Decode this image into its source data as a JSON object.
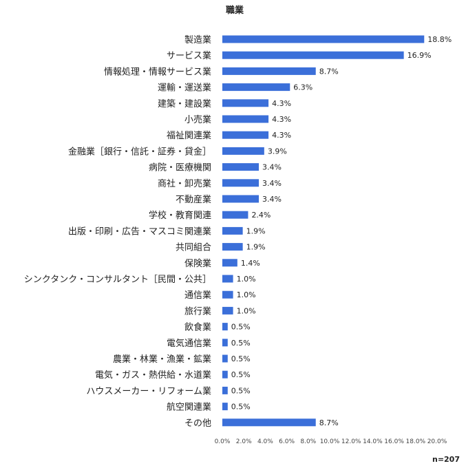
{
  "chart_data": {
    "type": "bar",
    "orientation": "horizontal",
    "title": "職業",
    "note": "n=207",
    "bar_color": "#3b6fd9",
    "xlim": [
      0,
      20
    ],
    "grid": false,
    "xticks": [
      0,
      2,
      4,
      6,
      8,
      10,
      12,
      14,
      16,
      18,
      20
    ],
    "xtick_labels": [
      "0.0%",
      "2.0%",
      "4.0%",
      "6.0%",
      "8.0%",
      "10.0%",
      "12.0%",
      "14.0%",
      "16.0%",
      "18.0%",
      "20.0%"
    ],
    "categories": [
      "製造業",
      "サービス業",
      "情報処理・情報サービス業",
      "運輸・運送業",
      "建築・建設業",
      "小売業",
      "福祉関連業",
      "金融業［銀行・信託・証券・貸金］",
      "病院・医療機関",
      "商社・卸売業",
      "不動産業",
      "学校・教育関連",
      "出版・印刷・広告・マスコミ関連業",
      "共同組合",
      "保険業",
      "シンクタンク・コンサルタント［民間・公共］",
      "通信業",
      "旅行業",
      "飲食業",
      "電気通信業",
      "農業・林業・漁業・鉱業",
      "電気・ガス・熱供給・水道業",
      "ハウスメーカー・リフォーム業",
      "航空関連業",
      "その他"
    ],
    "values": [
      18.8,
      16.9,
      8.7,
      6.3,
      4.3,
      4.3,
      4.3,
      3.9,
      3.4,
      3.4,
      3.4,
      2.4,
      1.9,
      1.9,
      1.4,
      1.0,
      1.0,
      1.0,
      0.5,
      0.5,
      0.5,
      0.5,
      0.5,
      0.5,
      8.7
    ],
    "value_labels": [
      "18.8%",
      "16.9%",
      "8.7%",
      "6.3%",
      "4.3%",
      "4.3%",
      "4.3%",
      "3.9%",
      "3.4%",
      "3.4%",
      "3.4%",
      "2.4%",
      "1.9%",
      "1.9%",
      "1.4%",
      "1.0%",
      "1.0%",
      "1.0%",
      "0.5%",
      "0.5%",
      "0.5%",
      "0.5%",
      "0.5%",
      "0.5%",
      "8.7%"
    ]
  }
}
